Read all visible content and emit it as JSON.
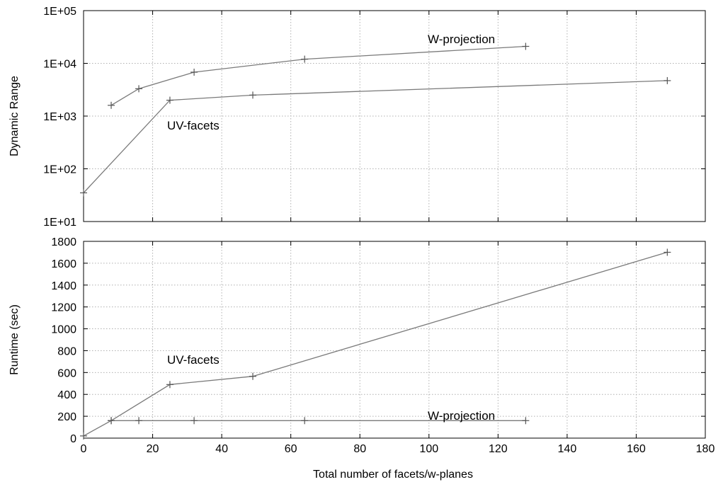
{
  "chart_data": [
    {
      "type": "line",
      "title": "",
      "ylabel": "Dynamic Range",
      "xlabel": "",
      "yscale": "log",
      "xlim": [
        0,
        180
      ],
      "ylim": [
        10,
        100000
      ],
      "grid": true,
      "x_ticks": [
        0,
        20,
        40,
        60,
        80,
        100,
        120,
        140,
        160,
        180
      ],
      "y_tick_labels": [
        "1E+01",
        "1E+02",
        "1E+03",
        "1E+04",
        "1E+05"
      ],
      "series": [
        {
          "name": "W-projection",
          "points": [
            [
              8,
              1600
            ],
            [
              16,
              3300
            ],
            [
              32,
              6800
            ],
            [
              64,
              12000
            ],
            [
              128,
              21000
            ]
          ]
        },
        {
          "name": "UV-facets",
          "points": [
            [
              0,
              35
            ],
            [
              25,
              2000
            ],
            [
              49,
              2500
            ],
            [
              169,
              4700
            ]
          ]
        }
      ],
      "annotations": [
        "W-projection",
        "UV-facets"
      ]
    },
    {
      "type": "line",
      "title": "",
      "ylabel": "Runtime (sec)",
      "xlabel": "Total number of facets/w-planes",
      "yscale": "linear",
      "xlim": [
        0,
        180
      ],
      "ylim": [
        0,
        1800
      ],
      "grid": true,
      "x_ticks": [
        0,
        20,
        40,
        60,
        80,
        100,
        120,
        140,
        160,
        180
      ],
      "y_ticks": [
        0,
        200,
        400,
        600,
        800,
        1000,
        1200,
        1400,
        1600,
        1800
      ],
      "series": [
        {
          "name": "UV-facets",
          "points": [
            [
              0,
              20
            ],
            [
              8,
              160
            ],
            [
              25,
              490
            ],
            [
              49,
              565
            ],
            [
              169,
              1700
            ]
          ]
        },
        {
          "name": "W-projection",
          "points": [
            [
              8,
              160
            ],
            [
              16,
              160
            ],
            [
              32,
              160
            ],
            [
              64,
              160
            ],
            [
              128,
              160
            ]
          ]
        }
      ],
      "annotations": [
        "UV-facets",
        "W-projection"
      ]
    }
  ]
}
